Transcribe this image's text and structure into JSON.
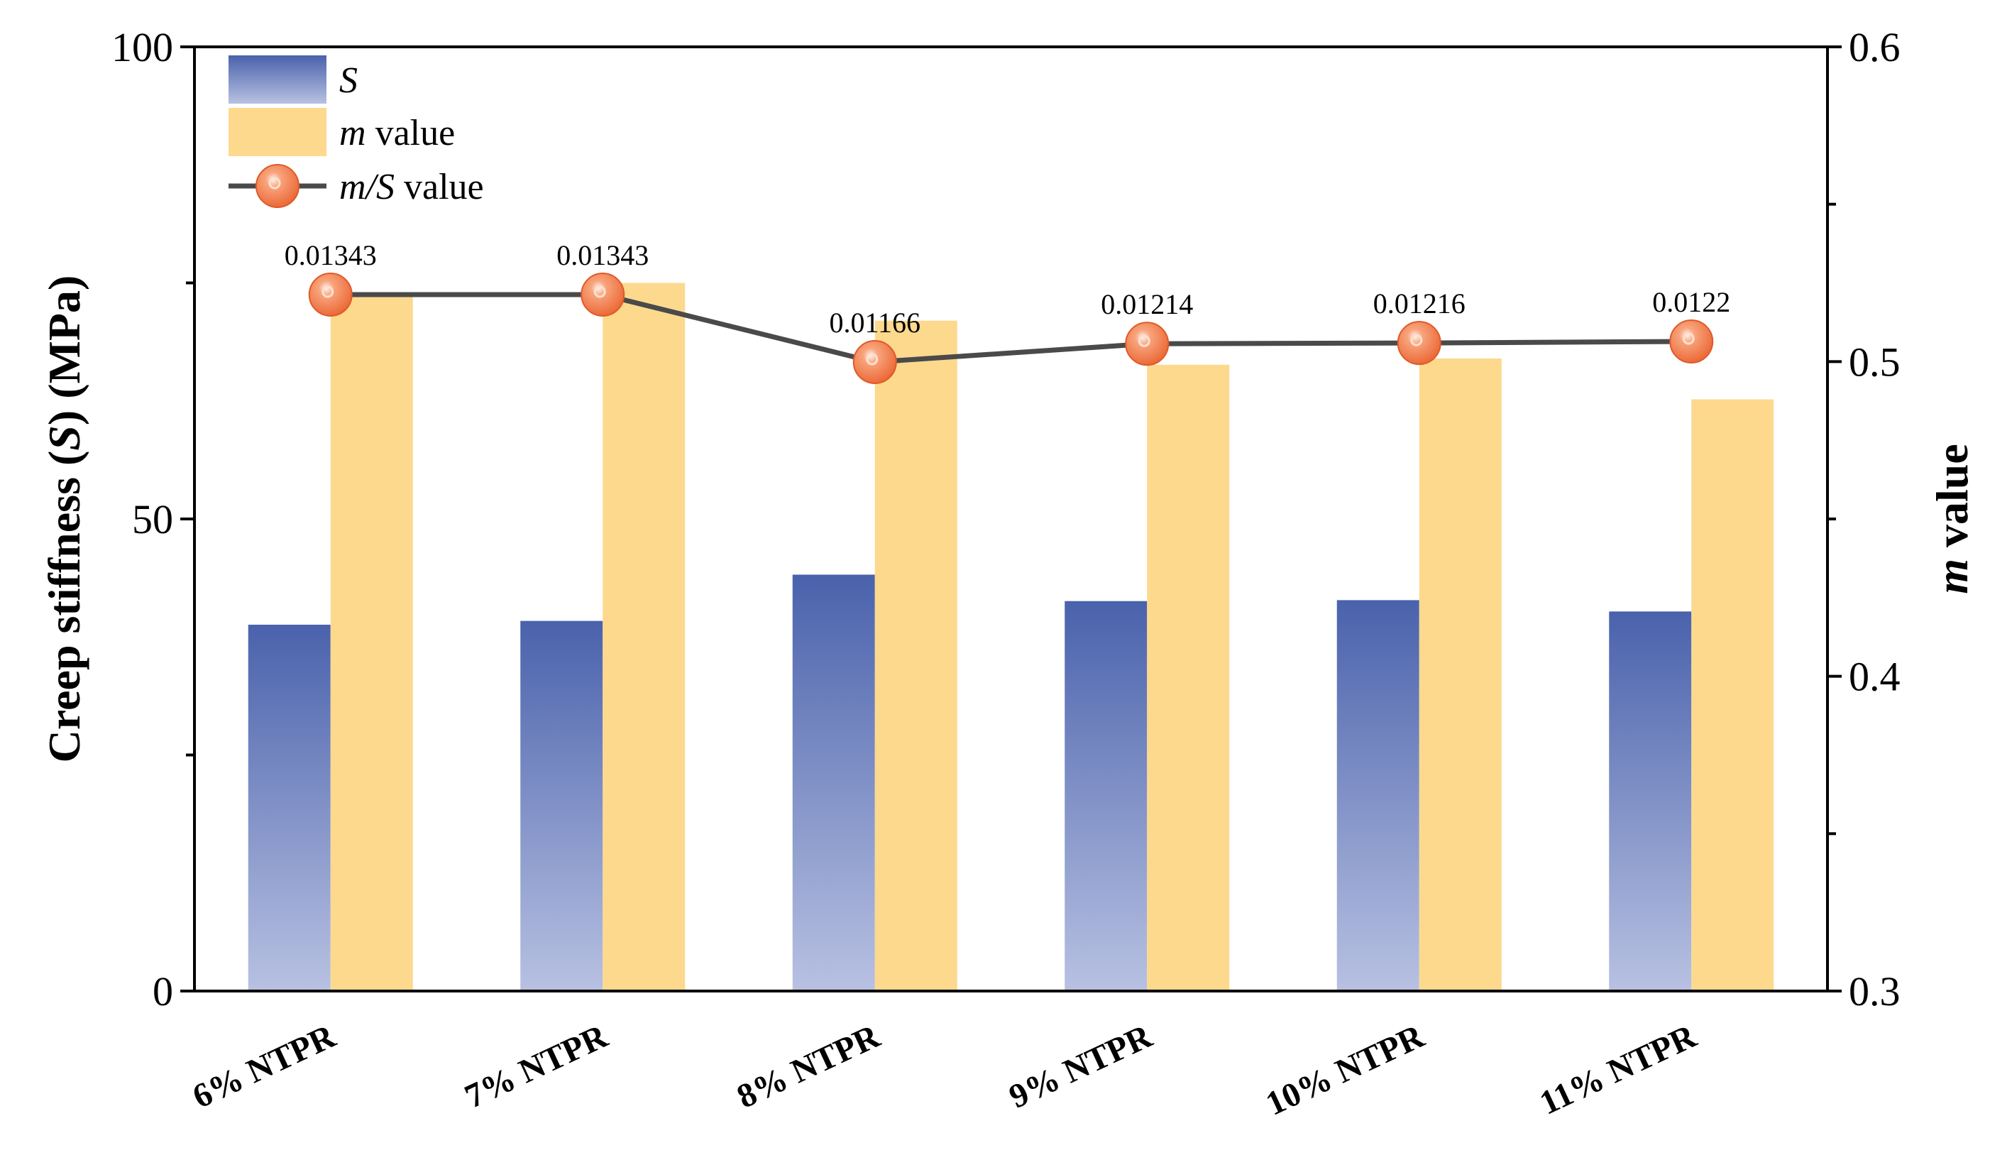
{
  "chart_data": {
    "type": "bar-line-combo",
    "categories": [
      "6% NTPR",
      "7% NTPR",
      "8% NTPR",
      "9% NTPR",
      "10% NTPR",
      "11% NTPR"
    ],
    "series": [
      {
        "name": "S",
        "axis": "left",
        "kind": "bar",
        "values": [
          38.8,
          39.2,
          44.1,
          41.3,
          41.4,
          40.2
        ]
      },
      {
        "name": "m value",
        "axis": "right",
        "kind": "bar",
        "values": [
          0.521,
          0.525,
          0.513,
          0.499,
          0.501,
          0.488
        ]
      },
      {
        "name": "m/S value",
        "axis": "none",
        "kind": "line",
        "values": [
          0.01343,
          0.01343,
          0.01166,
          0.01214,
          0.01216,
          0.0122
        ],
        "value_labels": [
          "0.01343",
          "0.01343",
          "0.01166",
          "0.01214",
          "0.01216",
          "0.0122"
        ]
      }
    ],
    "y_left": {
      "label_prefix": "Creep stiffness (",
      "label_var": "S",
      "label_suffix": ") (MPa)",
      "lim": [
        0,
        100
      ],
      "ticks": [
        0,
        50,
        100
      ],
      "tick_labels": [
        "0",
        "50",
        "100"
      ],
      "minor_ticks": [
        25,
        75
      ]
    },
    "y_right": {
      "label_var": "m",
      "label_suffix": " value",
      "lim": [
        0.3,
        0.6
      ],
      "ticks": [
        0.3,
        0.4,
        0.5,
        0.6
      ],
      "tick_labels": [
        "0.3",
        "0.4",
        "0.5",
        "0.6"
      ],
      "minor_ticks": [
        0.35,
        0.45,
        0.55
      ]
    },
    "legend": {
      "position": "top-left",
      "items": [
        {
          "var": "S",
          "text": ""
        },
        {
          "var": "m",
          "text": " value"
        },
        {
          "var": "m/S",
          "text": " value"
        }
      ]
    },
    "grid": false,
    "colors": {
      "s_bar_top": "#4a62ac",
      "s_bar_bottom": "#b8c1e2",
      "m_bar": "#fdd98e",
      "line": "#4a4a4a",
      "marker": "#f07040",
      "marker_highlight": "#fde0d0"
    }
  }
}
